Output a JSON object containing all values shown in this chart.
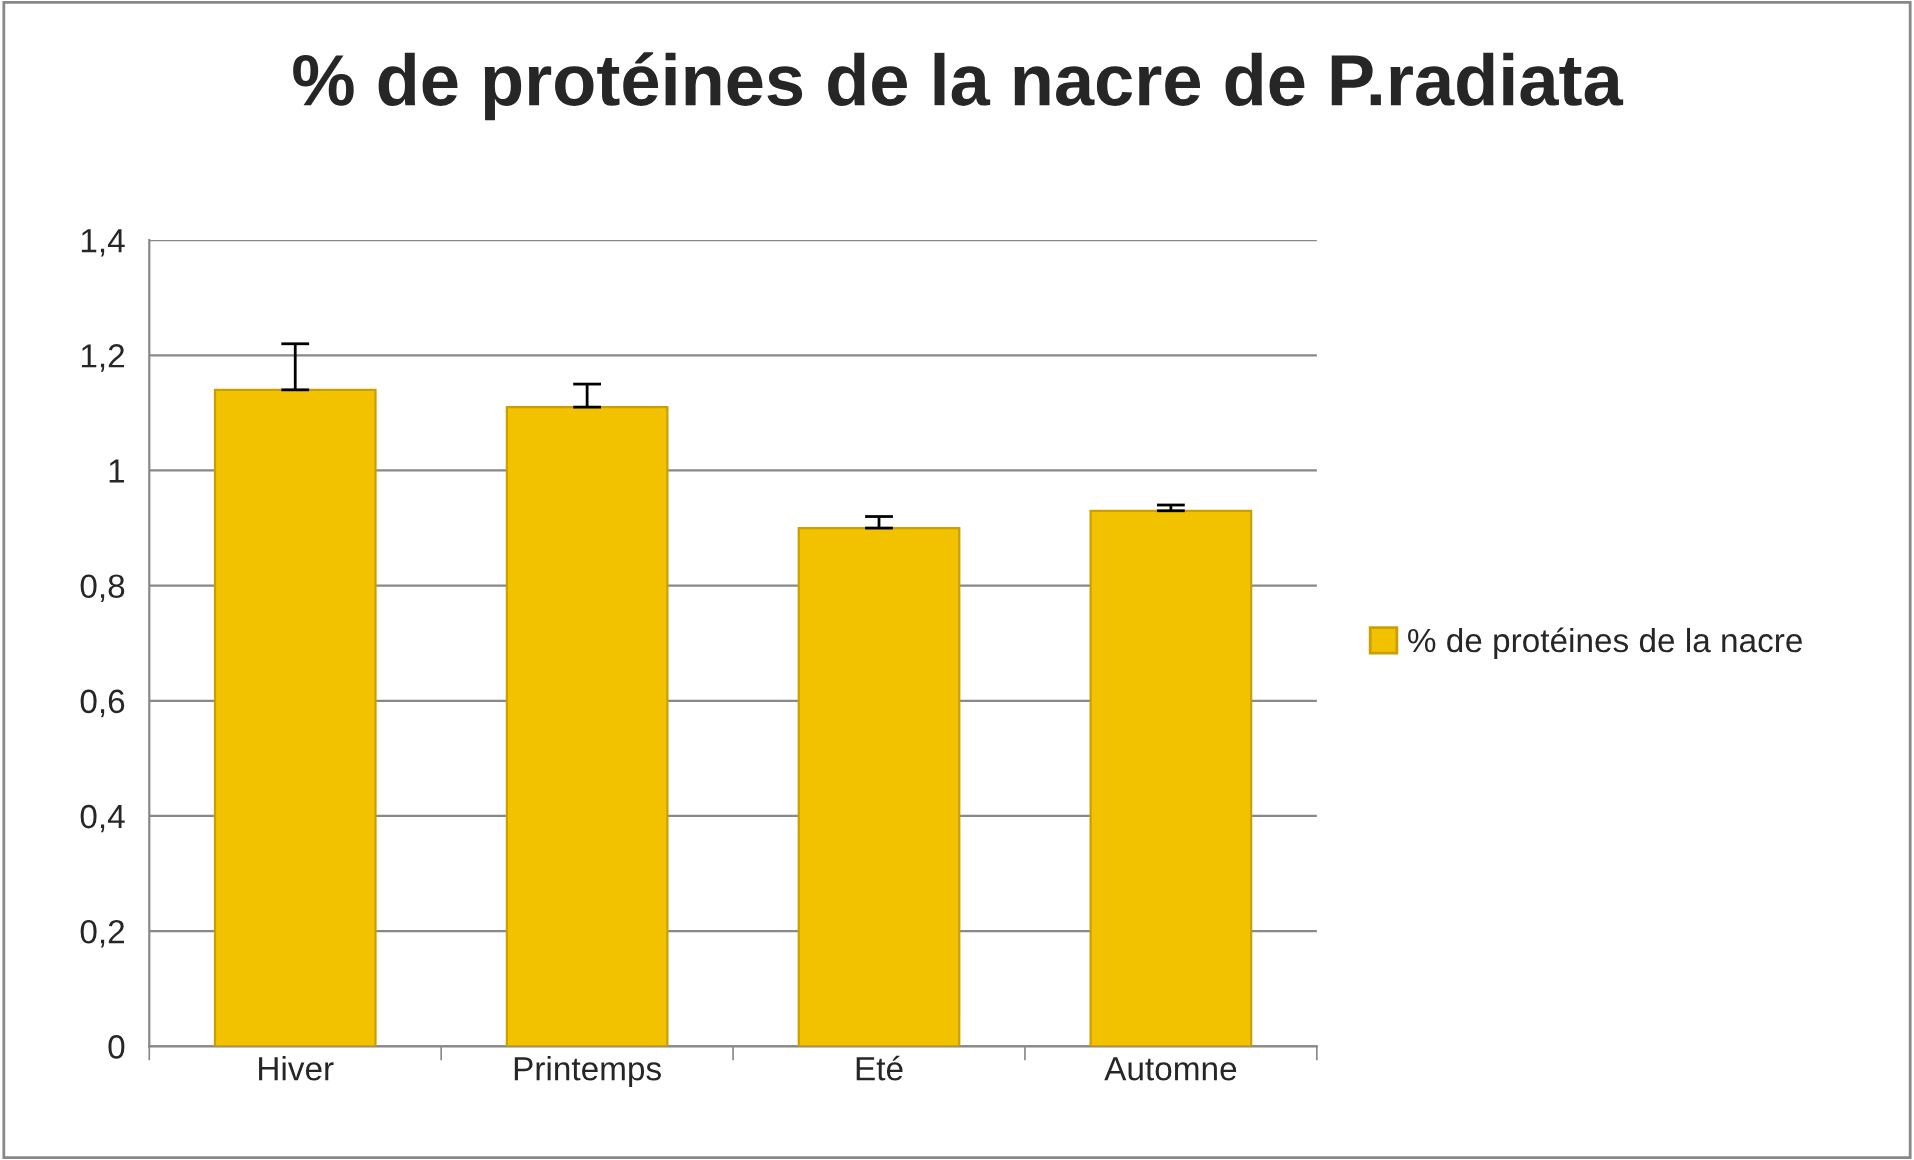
{
  "chart_data": {
    "type": "bar",
    "title": "% de protéines de la nacre de P.radiata",
    "categories": [
      "Hiver",
      "Printemps",
      "Eté",
      "Automne"
    ],
    "series": [
      {
        "name": "% de protéines de la nacre",
        "color": "#f2c200",
        "values": [
          1.14,
          1.11,
          0.9,
          0.93
        ],
        "errors": [
          [
            1.14,
            1.22
          ],
          [
            1.11,
            1.15
          ],
          [
            0.9,
            0.92
          ],
          [
            0.93,
            0.94
          ]
        ]
      }
    ],
    "ylim": [
      0,
      1.4
    ],
    "yticks": [
      0,
      {
        "value": 0.2,
        "label": "0,2"
      },
      {
        "value": 0.4,
        "label": "0,4"
      },
      {
        "value": 0.6,
        "label": "0,6"
      },
      {
        "value": 0.8,
        "label": "0,8"
      },
      1,
      {
        "value": 1.2,
        "label": "1,2"
      },
      {
        "value": 1.4,
        "label": "1,4"
      }
    ],
    "grid": "y",
    "legend": "right"
  }
}
